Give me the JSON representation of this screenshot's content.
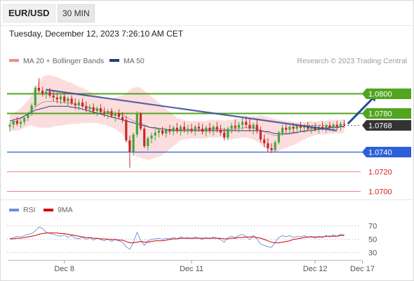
{
  "header": {
    "symbol": "EUR/USD",
    "interval": "30 MIN",
    "timestamp": "Tuesday, December 12, 2023 7:26:10 AM CET"
  },
  "legend": {
    "items": [
      {
        "label": "MA 20 + Bollinger Bands",
        "color": "#f08c8c"
      },
      {
        "label": "MA 50",
        "color": "#1f3e7a"
      }
    ],
    "attribution": "Research © 2023 Trading Central"
  },
  "rsi_legend": [
    {
      "label": "RSI",
      "color": "#6b8fe0"
    },
    {
      "label": "9MA",
      "color": "#d40000"
    }
  ],
  "colors": {
    "resistance": "#52a51f",
    "support": "#2d5fd8",
    "minor_level": "#f08585",
    "up_candle": "#42a63a",
    "down_candle": "#c62a2a",
    "trend": "#3a4799",
    "arrow": "#1f4f99"
  },
  "chart_data": {
    "type": "candlestick",
    "price_ylim": [
      1.0692,
      1.0824
    ],
    "levels": [
      {
        "price": 1.08,
        "label": "1.0800",
        "kind": "resistance"
      },
      {
        "price": 1.078,
        "label": "1.0780",
        "kind": "resistance"
      },
      {
        "price": 1.0768,
        "label": "1.0768",
        "kind": "current"
      },
      {
        "price": 1.074,
        "label": "1.0740",
        "kind": "support"
      },
      {
        "price": 1.072,
        "label": "1.0720",
        "kind": "minor"
      },
      {
        "price": 1.07,
        "label": "1.0700",
        "kind": "minor"
      }
    ],
    "x_ticks": [
      {
        "index": 15,
        "label": "Dec 8"
      },
      {
        "index": 50,
        "label": "Dec 11"
      },
      {
        "index": 84,
        "label": "Dec 12"
      },
      {
        "index": 97,
        "label": "Dec 17"
      }
    ],
    "trend_line": {
      "from": {
        "index": 10,
        "price": 1.0804
      },
      "to": {
        "index": 90,
        "price": 1.0762
      }
    },
    "arrow": {
      "from": {
        "index": 93,
        "price": 1.0769
      },
      "to": {
        "index": 101,
        "price": 1.0801
      }
    },
    "candles": [
      [
        1.0766,
        1.077,
        1.0761,
        1.0768
      ],
      [
        1.0768,
        1.0774,
        1.0764,
        1.0772
      ],
      [
        1.0772,
        1.0776,
        1.0767,
        1.0769
      ],
      [
        1.0769,
        1.0773,
        1.0765,
        1.0771
      ],
      [
        1.0771,
        1.0777,
        1.0768,
        1.0775
      ],
      [
        1.0775,
        1.0781,
        1.0772,
        1.0779
      ],
      [
        1.0779,
        1.079,
        1.0777,
        1.0788
      ],
      [
        1.0788,
        1.0808,
        1.0786,
        1.0806
      ],
      [
        1.0806,
        1.0816,
        1.0801,
        1.0803
      ],
      [
        1.0803,
        1.0807,
        1.0797,
        1.08
      ],
      [
        1.08,
        1.0805,
        1.0795,
        1.0802
      ],
      [
        1.0802,
        1.0806,
        1.0796,
        1.0798
      ],
      [
        1.0798,
        1.0802,
        1.0792,
        1.0796
      ],
      [
        1.0796,
        1.0801,
        1.079,
        1.0794
      ],
      [
        1.0794,
        1.0799,
        1.0789,
        1.0797
      ],
      [
        1.0797,
        1.08,
        1.079,
        1.0792
      ],
      [
        1.0792,
        1.0797,
        1.0787,
        1.0795
      ],
      [
        1.0795,
        1.0798,
        1.0788,
        1.079
      ],
      [
        1.079,
        1.0795,
        1.0784,
        1.0788
      ],
      [
        1.0788,
        1.0794,
        1.0783,
        1.0791
      ],
      [
        1.0791,
        1.0795,
        1.0785,
        1.0787
      ],
      [
        1.0787,
        1.0792,
        1.0781,
        1.0784
      ],
      [
        1.0784,
        1.0789,
        1.0779,
        1.0786
      ],
      [
        1.0786,
        1.079,
        1.078,
        1.0782
      ],
      [
        1.0782,
        1.0787,
        1.0777,
        1.0785
      ],
      [
        1.0785,
        1.0789,
        1.0779,
        1.0781
      ],
      [
        1.0781,
        1.0786,
        1.0776,
        1.0779
      ],
      [
        1.0779,
        1.0784,
        1.0774,
        1.0782
      ],
      [
        1.0782,
        1.0785,
        1.0775,
        1.0777
      ],
      [
        1.0777,
        1.0782,
        1.0771,
        1.078
      ],
      [
        1.078,
        1.0784,
        1.0774,
        1.0776
      ],
      [
        1.0776,
        1.0781,
        1.077,
        1.0773
      ],
      [
        1.0773,
        1.0777,
        1.075,
        1.0752
      ],
      [
        1.0752,
        1.0757,
        1.0724,
        1.074
      ],
      [
        1.074,
        1.076,
        1.0736,
        1.0758
      ],
      [
        1.0758,
        1.0782,
        1.0755,
        1.0779
      ],
      [
        1.0779,
        1.0781,
        1.0762,
        1.0764
      ],
      [
        1.0764,
        1.0766,
        1.0744,
        1.0746
      ],
      [
        1.0746,
        1.0756,
        1.0742,
        1.0754
      ],
      [
        1.0754,
        1.076,
        1.0749,
        1.0757
      ],
      [
        1.0757,
        1.0763,
        1.0752,
        1.076
      ],
      [
        1.076,
        1.0765,
        1.0755,
        1.0762
      ],
      [
        1.0762,
        1.0766,
        1.0757,
        1.0759
      ],
      [
        1.0759,
        1.0765,
        1.0755,
        1.0763
      ],
      [
        1.0763,
        1.0768,
        1.0758,
        1.0761
      ],
      [
        1.0761,
        1.0767,
        1.0757,
        1.0765
      ],
      [
        1.0765,
        1.077,
        1.0759,
        1.0762
      ],
      [
        1.0762,
        1.0768,
        1.0757,
        1.0766
      ],
      [
        1.0766,
        1.0771,
        1.076,
        1.0763
      ],
      [
        1.0763,
        1.0768,
        1.0758,
        1.0764
      ],
      [
        1.0764,
        1.0769,
        1.0759,
        1.0762
      ],
      [
        1.0762,
        1.0768,
        1.0757,
        1.0766
      ],
      [
        1.0766,
        1.077,
        1.0761,
        1.0764
      ],
      [
        1.0764,
        1.0769,
        1.0758,
        1.0761
      ],
      [
        1.0761,
        1.0767,
        1.0756,
        1.0765
      ],
      [
        1.0765,
        1.077,
        1.0759,
        1.0762
      ],
      [
        1.0762,
        1.0768,
        1.0757,
        1.0766
      ],
      [
        1.0766,
        1.0771,
        1.076,
        1.0763
      ],
      [
        1.0763,
        1.0768,
        1.0757,
        1.076
      ],
      [
        1.076,
        1.0765,
        1.0752,
        1.0755
      ],
      [
        1.0755,
        1.0766,
        1.0752,
        1.0764
      ],
      [
        1.0764,
        1.077,
        1.0759,
        1.0767
      ],
      [
        1.0767,
        1.0773,
        1.0762,
        1.0765
      ],
      [
        1.0765,
        1.0771,
        1.076,
        1.0768
      ],
      [
        1.0768,
        1.0775,
        1.0763,
        1.0771
      ],
      [
        1.0771,
        1.0777,
        1.0765,
        1.0768
      ],
      [
        1.0768,
        1.0774,
        1.0761,
        1.0764
      ],
      [
        1.0764,
        1.077,
        1.0758,
        1.0768
      ],
      [
        1.0768,
        1.0773,
        1.0759,
        1.0762
      ],
      [
        1.0762,
        1.0766,
        1.075,
        1.0753
      ],
      [
        1.0753,
        1.0758,
        1.0745,
        1.0749
      ],
      [
        1.0749,
        1.0754,
        1.074,
        1.0744
      ],
      [
        1.0744,
        1.0749,
        1.0739,
        1.0742
      ],
      [
        1.0742,
        1.0752,
        1.074,
        1.075
      ],
      [
        1.075,
        1.0762,
        1.0748,
        1.076
      ],
      [
        1.076,
        1.0768,
        1.0757,
        1.0765
      ],
      [
        1.0765,
        1.077,
        1.076,
        1.0763
      ],
      [
        1.0763,
        1.0768,
        1.0758,
        1.0766
      ],
      [
        1.0766,
        1.077,
        1.076,
        1.0764
      ],
      [
        1.0764,
        1.0769,
        1.0759,
        1.0767
      ],
      [
        1.0767,
        1.0771,
        1.0761,
        1.0765
      ],
      [
        1.0765,
        1.0769,
        1.076,
        1.0767
      ],
      [
        1.0767,
        1.0771,
        1.0762,
        1.0764
      ],
      [
        1.0764,
        1.0768,
        1.0759,
        1.0766
      ],
      [
        1.0766,
        1.077,
        1.0761,
        1.0763
      ],
      [
        1.0763,
        1.0768,
        1.0759,
        1.0766
      ],
      [
        1.0766,
        1.0771,
        1.0762,
        1.0764
      ],
      [
        1.0764,
        1.0769,
        1.076,
        1.0767
      ],
      [
        1.0767,
        1.0771,
        1.0762,
        1.0765
      ],
      [
        1.0765,
        1.077,
        1.0761,
        1.0768
      ],
      [
        1.0768,
        1.0772,
        1.0763,
        1.0766
      ],
      [
        1.0766,
        1.0771,
        1.0762,
        1.0769
      ],
      [
        1.0769,
        1.0773,
        1.0765,
        1.0768
      ]
    ],
    "ma20": [
      1.077,
      1.0771,
      1.0772,
      1.0774,
      1.0777,
      1.078,
      1.0783,
      1.0786,
      1.0789,
      1.0791,
      1.0792,
      1.0792,
      1.0792,
      1.0792,
      1.0791,
      1.0791,
      1.079,
      1.079,
      1.0789,
      1.0788,
      1.0788,
      1.0787,
      1.0786,
      1.0785,
      1.0784,
      1.0783,
      1.0782,
      1.0781,
      1.078,
      1.078,
      1.0779,
      1.0778,
      1.0776,
      1.0774,
      1.0772,
      1.0771,
      1.077,
      1.0768,
      1.0766,
      1.0765,
      1.0764,
      1.0763,
      1.0762,
      1.0762,
      1.0762,
      1.0762,
      1.0762,
      1.0763,
      1.0763,
      1.0763,
      1.0763,
      1.0763,
      1.0763,
      1.0763,
      1.0763,
      1.0764,
      1.0764,
      1.0764,
      1.0764,
      1.0763,
      1.0763,
      1.0763,
      1.0764,
      1.0764,
      1.0765,
      1.0765,
      1.0765,
      1.0765,
      1.0764,
      1.0763,
      1.0761,
      1.0759,
      1.0758,
      1.0757,
      1.0757,
      1.0758,
      1.0758,
      1.0759,
      1.0759,
      1.076,
      1.0761,
      1.0762,
      1.0763,
      1.0764,
      1.0764,
      1.0765,
      1.0765,
      1.0765,
      1.0766,
      1.0766,
      1.0766,
      1.0766,
      1.0767
    ],
    "bb_width": [
      0.0008,
      0.0009,
      0.001,
      0.0011,
      0.0012,
      0.0013,
      0.0016,
      0.002,
      0.0024,
      0.0026,
      0.0027,
      0.0027,
      0.0026,
      0.0025,
      0.0024,
      0.0023,
      0.0022,
      0.0021,
      0.002,
      0.0019,
      0.0018,
      0.0017,
      0.0016,
      0.0015,
      0.0014,
      0.0014,
      0.0014,
      0.0014,
      0.0015,
      0.0016,
      0.0018,
      0.002,
      0.0024,
      0.003,
      0.0034,
      0.0036,
      0.0036,
      0.0035,
      0.0034,
      0.0032,
      0.003,
      0.0028,
      0.0025,
      0.0022,
      0.0019,
      0.0016,
      0.0013,
      0.0011,
      0.001,
      0.0009,
      0.0009,
      0.0009,
      0.0009,
      0.0009,
      0.0009,
      0.0009,
      0.0009,
      0.0009,
      0.0009,
      0.0009,
      0.001,
      0.001,
      0.001,
      0.001,
      0.001,
      0.001,
      0.0011,
      0.0012,
      0.0013,
      0.0015,
      0.0016,
      0.0017,
      0.0017,
      0.0017,
      0.0016,
      0.0015,
      0.0014,
      0.0013,
      0.0012,
      0.0011,
      0.001,
      0.0009,
      0.0008,
      0.0008,
      0.0007,
      0.0007,
      0.0007,
      0.0007,
      0.0007,
      0.0007,
      0.0007,
      0.0007,
      0.0007
    ],
    "ma50": [
      1.0772,
      1.0773,
      1.0774,
      1.0775,
      1.0777,
      1.0779,
      1.0781,
      1.0783,
      1.0784,
      1.0785,
      1.0786,
      1.0787,
      1.0787,
      1.0787,
      1.0787,
      1.0787,
      1.0787,
      1.0786,
      1.0786,
      1.0785,
      1.0784,
      1.0783,
      1.0782,
      1.0781,
      1.078,
      1.0779,
      1.0778,
      1.0777,
      1.0776,
      1.0775,
      1.0774,
      1.0773,
      1.0772,
      1.0771,
      1.077,
      1.0769,
      1.0768,
      1.0767,
      1.0766,
      1.0765,
      1.0765,
      1.0764,
      1.0764,
      1.0763,
      1.0763,
      1.0763,
      1.0762,
      1.0762,
      1.0762,
      1.0762,
      1.0762,
      1.0762,
      1.0762,
      1.0762,
      1.0762,
      1.0762,
      1.0762,
      1.0762,
      1.0762,
      1.0762,
      1.0762,
      1.0762,
      1.0762,
      1.0762,
      1.0762,
      1.0762,
      1.0762,
      1.0762,
      1.0762,
      1.0762,
      1.0761,
      1.0761,
      1.076,
      1.0759,
      1.0759,
      1.0759,
      1.0759,
      1.0759,
      1.076,
      1.076,
      1.0761,
      1.0761,
      1.0762,
      1.0762,
      1.0763,
      1.0763,
      1.0764,
      1.0764,
      1.0765,
      1.0765,
      1.0765,
      1.0766,
      1.0766
    ],
    "rsi": {
      "ticks": [
        30,
        50,
        70
      ],
      "ylim": [
        20,
        80
      ],
      "values": [
        50,
        52,
        54,
        53,
        55,
        57,
        58,
        62,
        68,
        66,
        60,
        58,
        57,
        55,
        54,
        56,
        52,
        55,
        51,
        50,
        53,
        49,
        52,
        48,
        51,
        49,
        47,
        50,
        46,
        49,
        47,
        45,
        38,
        34,
        44,
        60,
        48,
        40,
        47,
        49,
        50,
        51,
        49,
        51,
        50,
        52,
        50,
        53,
        51,
        52,
        50,
        53,
        51,
        49,
        52,
        50,
        53,
        51,
        49,
        45,
        52,
        54,
        52,
        55,
        57,
        53,
        49,
        55,
        50,
        42,
        40,
        38,
        37,
        45,
        52,
        55,
        53,
        55,
        52,
        54,
        53,
        55,
        52,
        54,
        51,
        54,
        52,
        55,
        53,
        56,
        54,
        57,
        56
      ],
      "ma9": [
        50,
        50,
        51,
        51,
        52,
        53,
        54,
        55,
        57,
        58,
        59,
        59,
        59,
        59,
        58,
        58,
        57,
        56,
        55,
        54,
        53,
        52,
        52,
        51,
        51,
        50,
        50,
        49,
        49,
        49,
        48,
        48,
        46,
        44,
        44,
        45,
        46,
        45,
        45,
        46,
        47,
        47,
        47,
        48,
        49,
        50,
        50,
        51,
        51,
        51,
        51,
        51,
        51,
        51,
        51,
        51,
        51,
        51,
        51,
        50,
        50,
        51,
        51,
        52,
        52,
        53,
        53,
        53,
        52,
        51,
        49,
        47,
        45,
        44,
        44,
        45,
        46,
        47,
        49,
        50,
        51,
        52,
        53,
        53,
        53,
        53,
        53,
        54,
        54,
        54,
        54,
        55,
        55
      ]
    }
  }
}
